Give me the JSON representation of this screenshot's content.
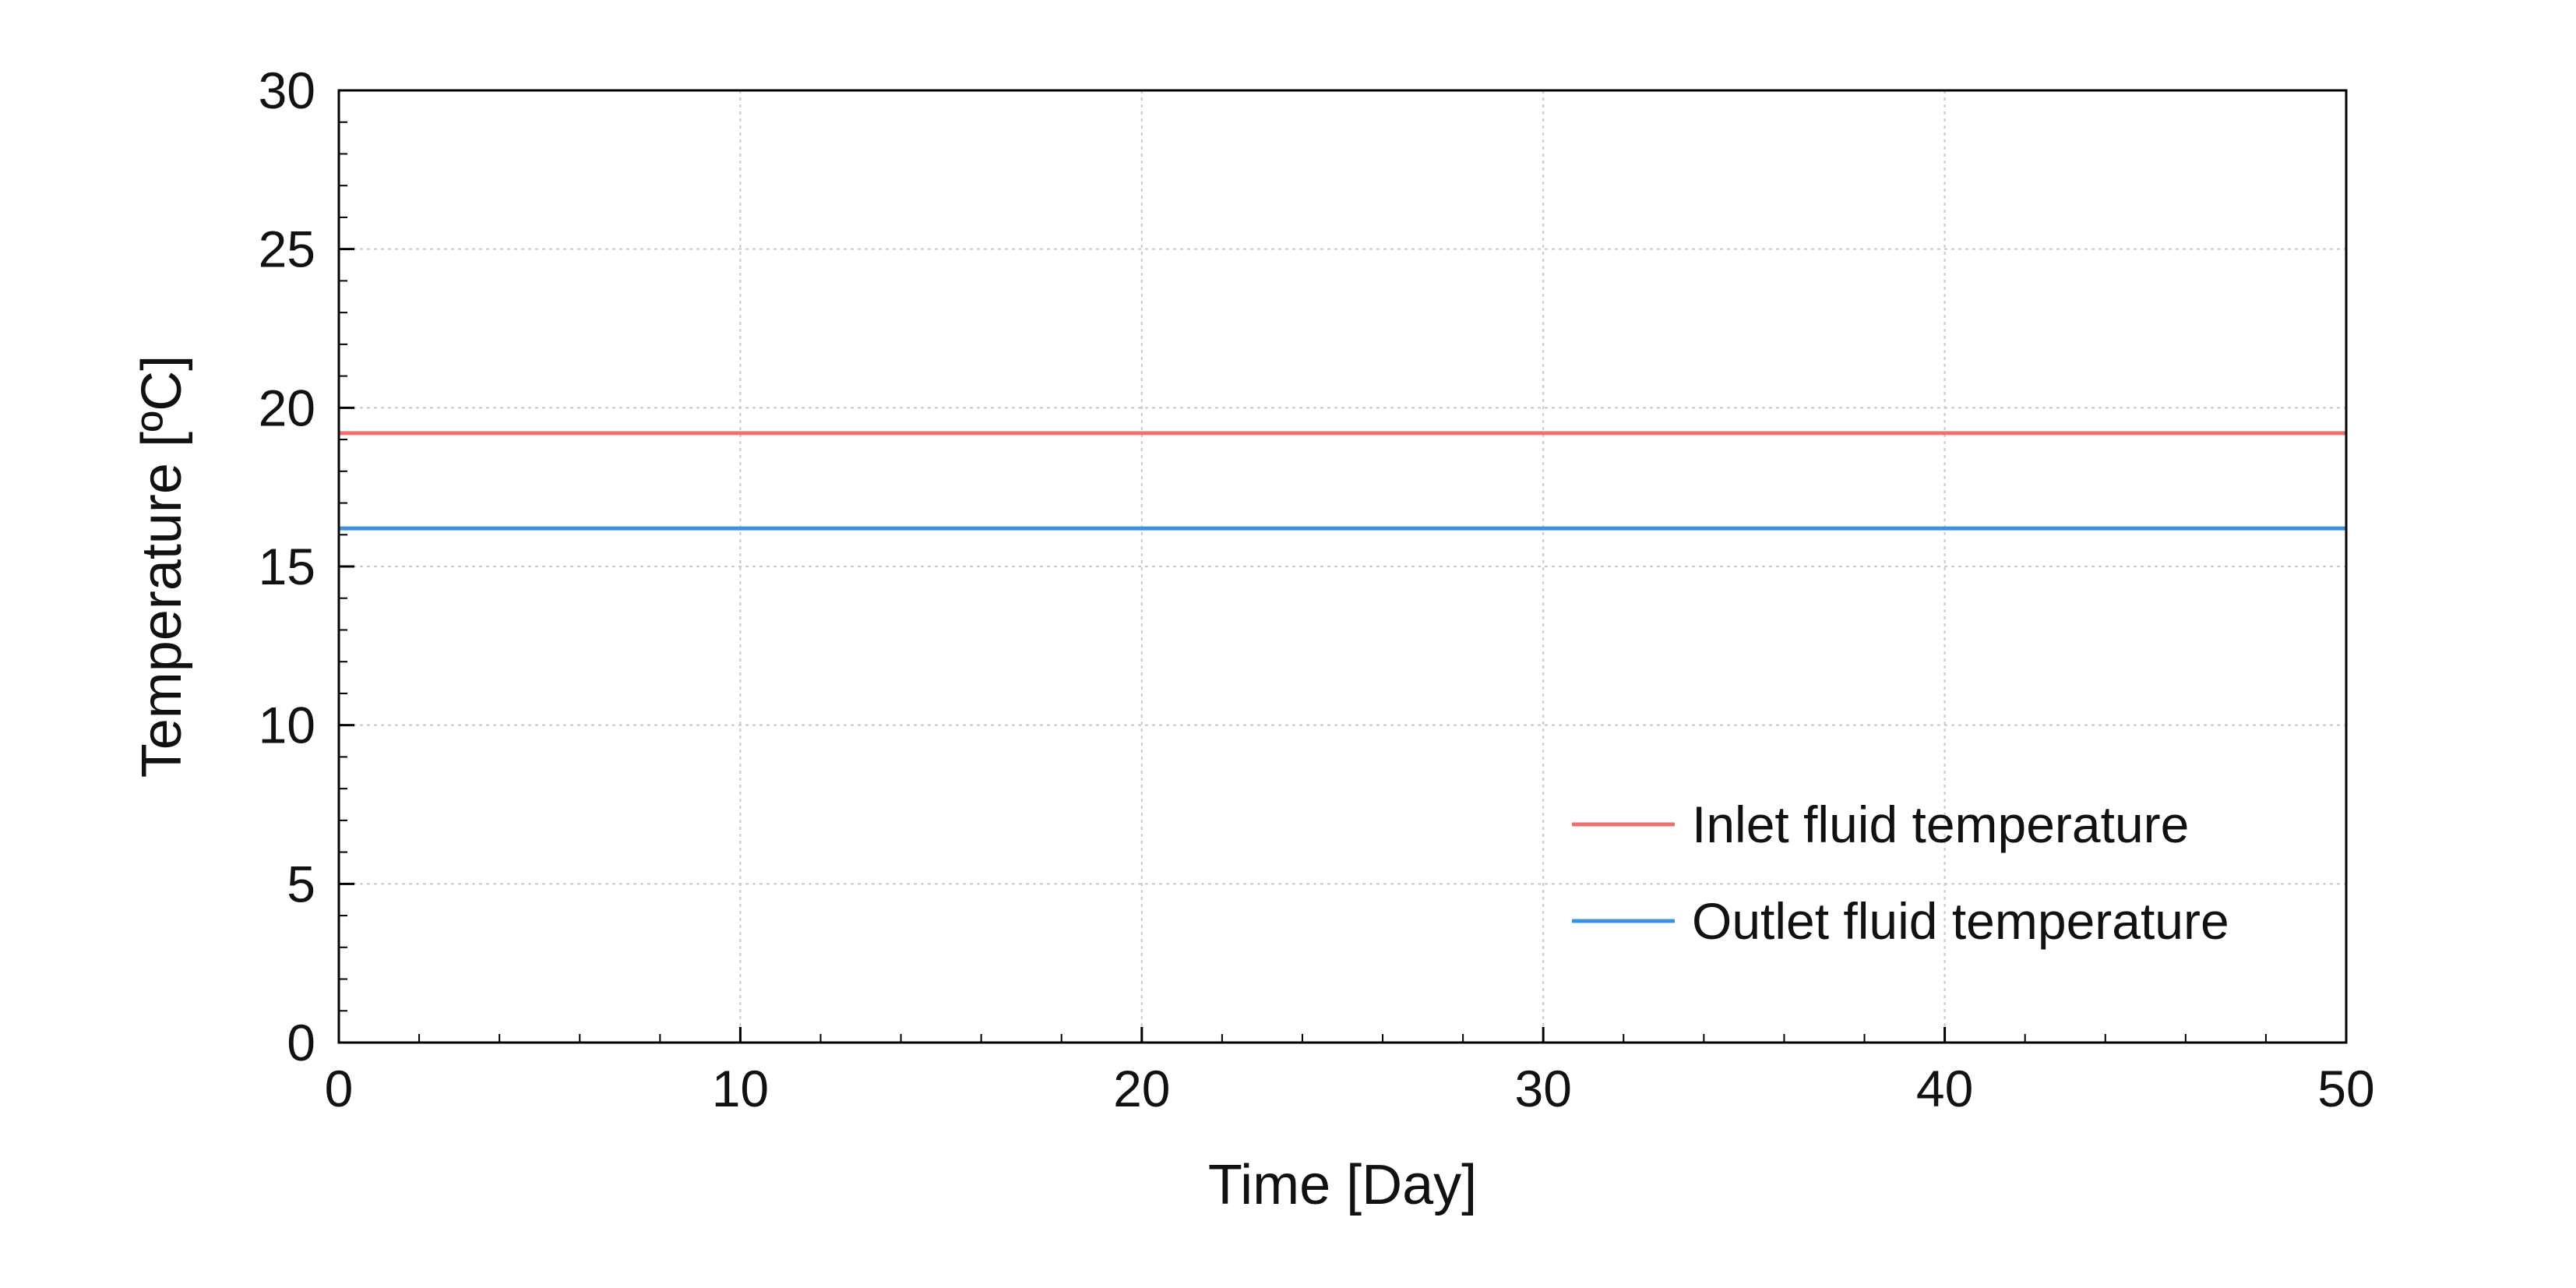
{
  "chart_data": {
    "type": "line",
    "title": "",
    "xlabel": "Time [Day]",
    "ylabel": "Temperature [ºC]",
    "xlim": [
      0,
      50
    ],
    "ylim": [
      0,
      30
    ],
    "x_ticks": [
      0,
      10,
      20,
      30,
      40,
      50
    ],
    "y_ticks": [
      0,
      5,
      10,
      15,
      20,
      25,
      30
    ],
    "grid": true,
    "legend_position": "bottom-right",
    "series": [
      {
        "name": "Inlet fluid temperature",
        "color": "#f07070",
        "x": [
          0,
          50
        ],
        "y": [
          19.2,
          19.2
        ]
      },
      {
        "name": "Outlet fluid temperature",
        "color": "#3a93e0",
        "x": [
          0,
          50
        ],
        "y": [
          16.2,
          16.2
        ]
      }
    ]
  }
}
